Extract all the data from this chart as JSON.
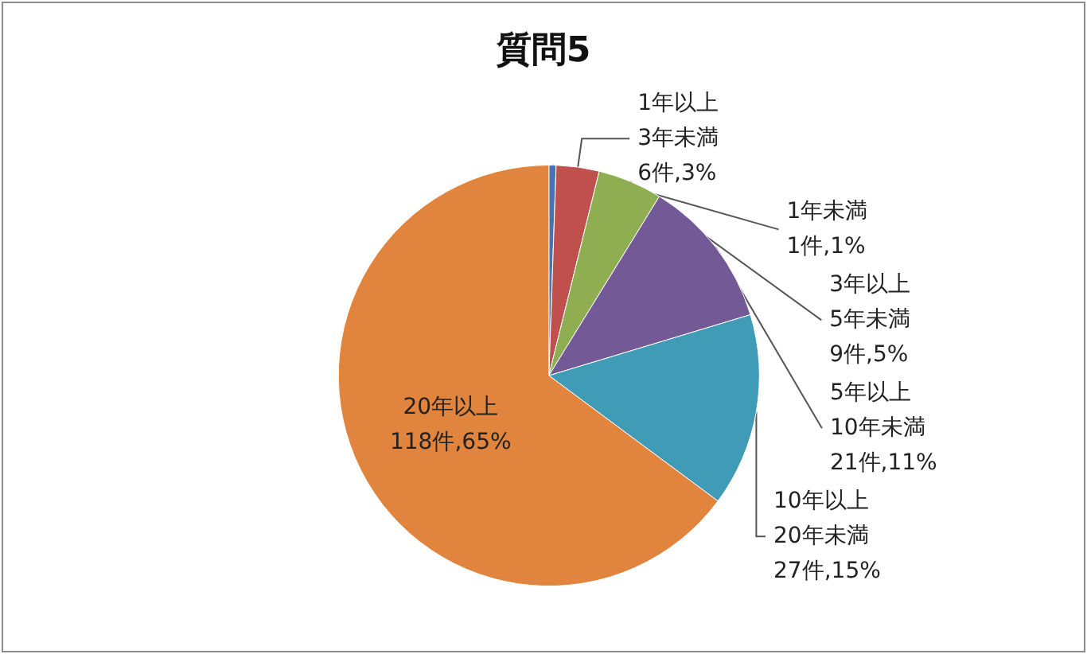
{
  "chart_data": {
    "type": "pie",
    "title": "質問5",
    "categories": [
      "1年未満",
      "1年以上\n3年未満",
      "3年以上\n5年未満",
      "5年以上\n10年未満",
      "10年以上\n20年未満",
      "20年以上"
    ],
    "values": [
      1,
      6,
      9,
      21,
      27,
      118
    ],
    "value_labels": [
      "1件,1%",
      "6件,3%",
      "9件,5%",
      "21件,11%",
      "27件,15%",
      "118件,65%"
    ],
    "colors": [
      "#4a72b0",
      "#c0504d",
      "#8fae52",
      "#735995",
      "#3f9bb6",
      "#e0843e"
    ],
    "legend": false
  }
}
